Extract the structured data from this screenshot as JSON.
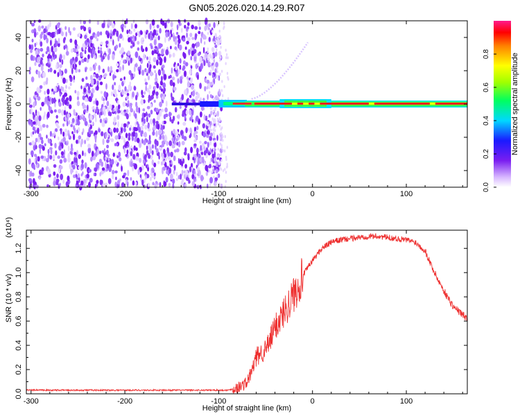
{
  "title": "GN05.2026.020.14.29.R07",
  "colors": {
    "snr_line": "#ee3030",
    "scatter_purple": "#7a1ef0"
  },
  "colorbar": {
    "label": "Normalized spectral amplitude",
    "ticks": [
      "0.0",
      "0.2",
      "0.4",
      "0.6",
      "0.8"
    ],
    "range": [
      0,
      1
    ]
  },
  "chart_data": [
    {
      "type": "heatmap",
      "xlabel": "Height of straight line (km)",
      "ylabel": "Frequency (Hz)",
      "xlim": [
        -305,
        165
      ],
      "ylim": [
        -50,
        50
      ],
      "xticks": [
        "-300",
        "-200",
        "-100",
        "0",
        "100"
      ],
      "yticks": [
        "-40",
        "-20",
        "0",
        "20",
        "40"
      ],
      "noise_region_x": [
        -300,
        -97
      ],
      "signal_band": {
        "freq_hz": 0,
        "x_start": -150,
        "x_end": 165,
        "peak_amplitude": 1.0
      }
    },
    {
      "type": "line",
      "xlabel": "Height of straight line (km)",
      "ylabel": "SNR (10 * v/v)",
      "multiplier": "(x10⁴)",
      "xlim": [
        -305,
        165
      ],
      "ylim": [
        0,
        1.35
      ],
      "xticks": [
        "-300",
        "-200",
        "-100",
        "0",
        "100"
      ],
      "yticks": [
        "0.0",
        "0.2",
        "0.4",
        "0.6",
        "0.8",
        "1.0",
        "1.2"
      ],
      "series": [
        {
          "x": [
            -305,
            -250,
            -200,
            -150,
            -110,
            -90,
            -80,
            -70,
            -65,
            -60,
            -55,
            -50,
            -45,
            -40,
            -30,
            -20,
            -10,
            0,
            10,
            20,
            30,
            40,
            50,
            60,
            70,
            80,
            90,
            100,
            110,
            120,
            130,
            140,
            150,
            165
          ],
          "values": [
            0.03,
            0.03,
            0.03,
            0.03,
            0.03,
            0.03,
            0.05,
            0.09,
            0.18,
            0.3,
            0.34,
            0.36,
            0.44,
            0.55,
            0.68,
            0.82,
            0.98,
            1.1,
            1.2,
            1.25,
            1.27,
            1.28,
            1.29,
            1.3,
            1.3,
            1.29,
            1.28,
            1.27,
            1.25,
            1.18,
            1.0,
            0.85,
            0.72,
            0.62
          ]
        }
      ]
    }
  ]
}
